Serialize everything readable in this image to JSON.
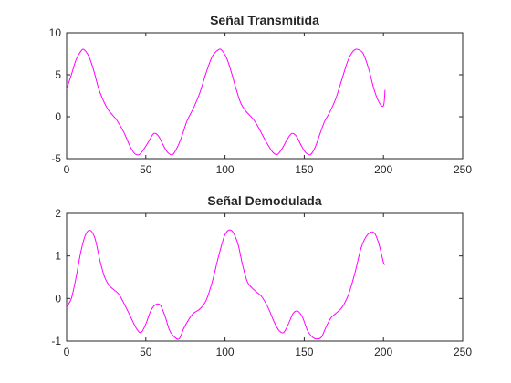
{
  "chart_data": [
    {
      "type": "line",
      "title": "Señal Transmitida",
      "xlabel": "",
      "ylabel": "",
      "xlim": [
        0,
        250
      ],
      "ylim": [
        -5,
        10
      ],
      "xticks": [
        0,
        50,
        100,
        150,
        200,
        250
      ],
      "yticks": [
        -5,
        0,
        5,
        10
      ],
      "grid": false,
      "color": "#ff00ff",
      "series": [
        {
          "x": [
            0,
            3,
            6,
            9,
            11,
            14,
            17,
            20,
            23,
            26,
            29,
            32,
            36,
            40,
            43,
            46,
            49,
            52,
            55,
            58,
            61,
            64,
            67,
            70,
            73,
            76,
            80,
            84,
            88,
            92,
            96,
            98,
            101,
            104,
            107,
            110,
            113,
            116,
            119,
            122,
            126,
            130,
            133,
            136,
            139,
            142,
            145,
            148,
            151,
            154,
            157,
            160,
            163,
            166,
            170,
            174,
            178,
            182,
            186,
            188,
            191,
            194,
            197,
            200,
            201
          ],
          "y": [
            3.3,
            5.0,
            6.8,
            7.8,
            8.0,
            7.2,
            5.6,
            3.5,
            2.0,
            0.9,
            0.2,
            -0.5,
            -1.8,
            -3.5,
            -4.4,
            -4.5,
            -3.8,
            -2.9,
            -2.0,
            -2.3,
            -3.4,
            -4.3,
            -4.5,
            -3.6,
            -2.2,
            -0.5,
            1.0,
            2.8,
            5.2,
            7.2,
            8.0,
            7.9,
            7.0,
            5.3,
            3.3,
            1.6,
            0.7,
            0.1,
            -0.6,
            -1.6,
            -3.0,
            -4.2,
            -4.5,
            -3.8,
            -2.8,
            -2.0,
            -2.3,
            -3.4,
            -4.3,
            -4.5,
            -3.6,
            -2.0,
            -0.5,
            0.5,
            2.2,
            4.6,
            6.9,
            8.0,
            7.8,
            7.2,
            5.5,
            3.3,
            1.8,
            1.3,
            3.2
          ]
        }
      ]
    },
    {
      "type": "line",
      "title": "Señal Demodulada",
      "xlabel": "",
      "ylabel": "",
      "xlim": [
        0,
        250
      ],
      "ylim": [
        -1,
        2
      ],
      "xticks": [
        0,
        50,
        100,
        150,
        200,
        250
      ],
      "yticks": [
        -1,
        0,
        1,
        2
      ],
      "grid": false,
      "color": "#ff00ff",
      "series": [
        {
          "x": [
            0,
            3,
            6,
            9,
            12,
            15,
            18,
            21,
            24,
            27,
            30,
            33,
            36,
            40,
            44,
            47,
            50,
            53,
            56,
            59,
            62,
            65,
            68,
            71,
            74,
            77,
            80,
            84,
            88,
            92,
            96,
            100,
            104,
            108,
            111,
            114,
            117,
            120,
            123,
            127,
            131,
            134,
            137,
            140,
            143,
            146,
            149,
            152,
            155,
            158,
            161,
            164,
            167,
            170,
            174,
            178,
            182,
            186,
            190,
            194,
            197,
            200,
            201
          ],
          "y": [
            -0.2,
            0.0,
            0.5,
            1.1,
            1.5,
            1.6,
            1.4,
            0.9,
            0.5,
            0.3,
            0.2,
            0.1,
            -0.1,
            -0.4,
            -0.7,
            -0.8,
            -0.6,
            -0.3,
            -0.15,
            -0.15,
            -0.4,
            -0.75,
            -0.9,
            -0.95,
            -0.7,
            -0.5,
            -0.35,
            -0.25,
            -0.05,
            0.4,
            1.0,
            1.5,
            1.6,
            1.3,
            0.8,
            0.4,
            0.25,
            0.15,
            0.05,
            -0.2,
            -0.55,
            -0.75,
            -0.8,
            -0.6,
            -0.35,
            -0.3,
            -0.45,
            -0.75,
            -0.9,
            -0.95,
            -0.9,
            -0.65,
            -0.45,
            -0.35,
            -0.2,
            0.1,
            0.6,
            1.2,
            1.5,
            1.55,
            1.3,
            0.85,
            0.8
          ]
        }
      ]
    }
  ]
}
